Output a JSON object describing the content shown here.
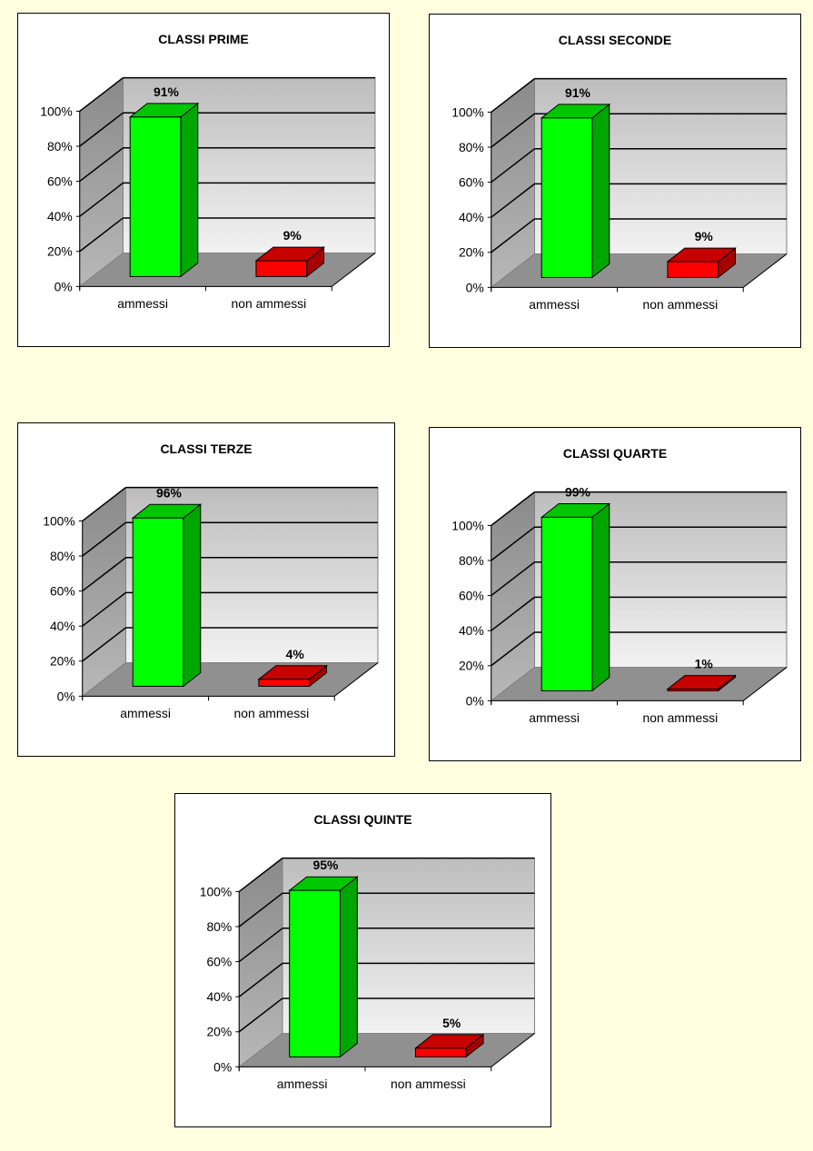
{
  "chart_data": [
    {
      "type": "bar",
      "title": "CLASSI PRIME",
      "categories": [
        "ammessi",
        "non ammessi"
      ],
      "values": [
        91,
        9
      ],
      "value_labels": [
        "91%",
        "9%"
      ],
      "ylim": [
        0,
        100
      ],
      "yticks": [
        "0%",
        "20%",
        "40%",
        "60%",
        "80%",
        "100%"
      ],
      "colors": [
        "#00FF00",
        "#FF0000"
      ]
    },
    {
      "type": "bar",
      "title": "CLASSI SECONDE",
      "categories": [
        "ammessi",
        "non ammessi"
      ],
      "values": [
        91,
        9
      ],
      "value_labels": [
        "91%",
        "9%"
      ],
      "ylim": [
        0,
        100
      ],
      "yticks": [
        "0%",
        "20%",
        "40%",
        "60%",
        "80%",
        "100%"
      ],
      "colors": [
        "#00FF00",
        "#FF0000"
      ]
    },
    {
      "type": "bar",
      "title": "CLASSI TERZE",
      "categories": [
        "ammessi",
        "non ammessi"
      ],
      "values": [
        96,
        4
      ],
      "value_labels": [
        "96%",
        "4%"
      ],
      "ylim": [
        0,
        100
      ],
      "yticks": [
        "0%",
        "20%",
        "40%",
        "60%",
        "80%",
        "100%"
      ],
      "colors": [
        "#00FF00",
        "#FF0000"
      ]
    },
    {
      "type": "bar",
      "title": "CLASSI QUARTE",
      "categories": [
        "ammessi",
        "non ammessi"
      ],
      "values": [
        99,
        1
      ],
      "value_labels": [
        "99%",
        "1%"
      ],
      "ylim": [
        0,
        100
      ],
      "yticks": [
        "0%",
        "20%",
        "40%",
        "60%",
        "80%",
        "100%"
      ],
      "colors": [
        "#00FF00",
        "#FF0000"
      ]
    },
    {
      "type": "bar",
      "title": "CLASSI QUINTE",
      "categories": [
        "ammessi",
        "non ammessi"
      ],
      "values": [
        95,
        5
      ],
      "value_labels": [
        "95%",
        "5%"
      ],
      "ylim": [
        0,
        100
      ],
      "yticks": [
        "0%",
        "20%",
        "40%",
        "60%",
        "80%",
        "100%"
      ],
      "colors": [
        "#00FF00",
        "#FF0000"
      ]
    }
  ]
}
